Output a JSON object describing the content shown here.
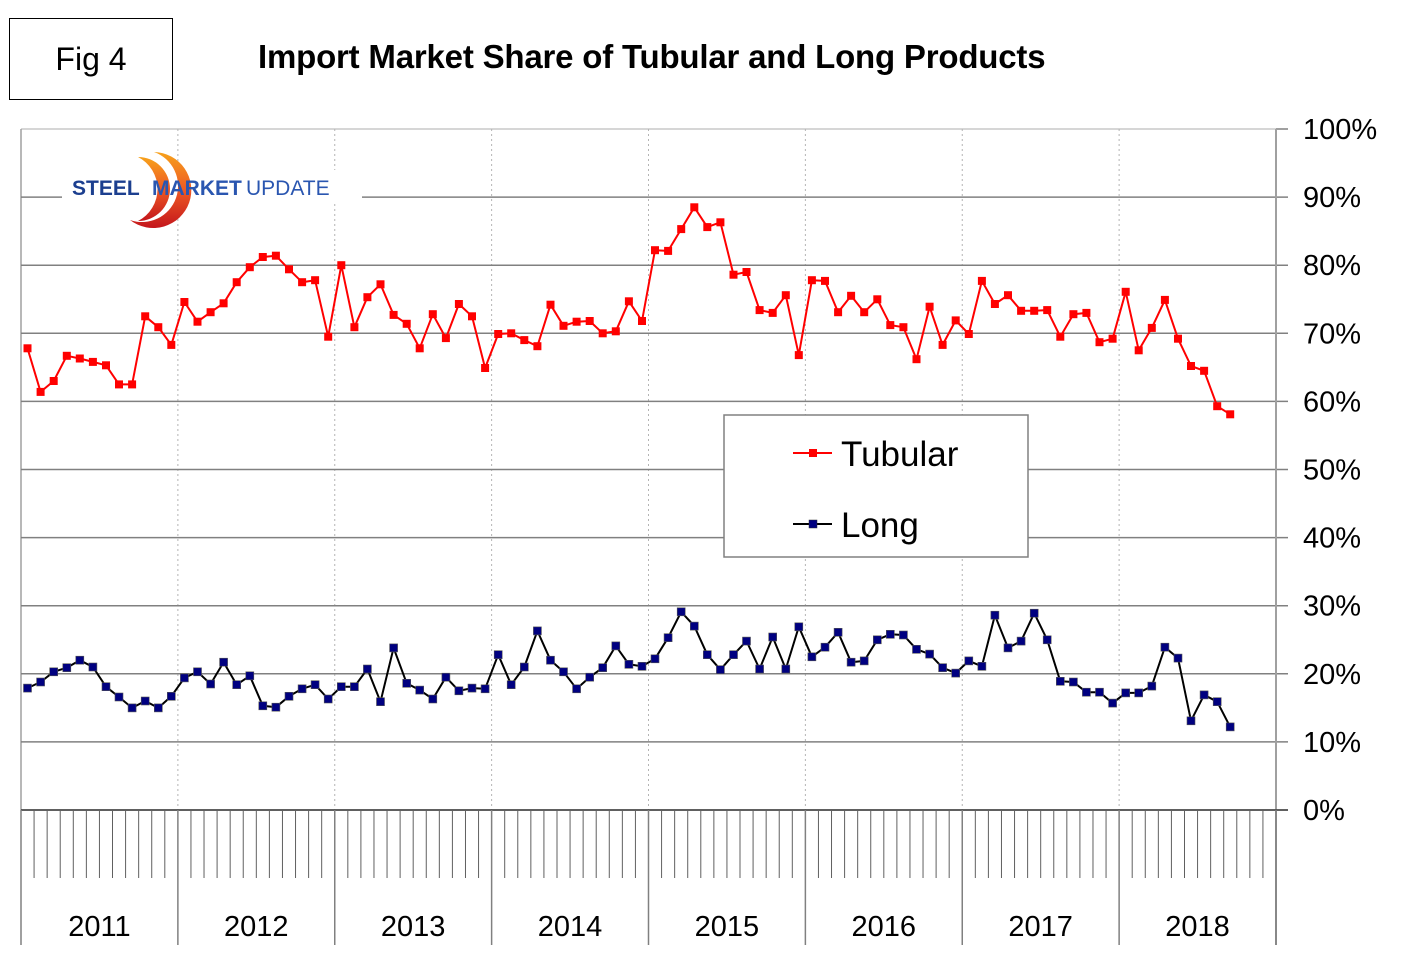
{
  "figure_label": "Fig 4",
  "logo": {
    "word1": "STEEL",
    "word2": "MARKET",
    "word3": "UPDATE",
    "arc_color_top": "#f7a21b",
    "arc_color_bottom": "#c4161c",
    "text_color": "#1c3f8f"
  },
  "chart_data": {
    "type": "line",
    "title": "Import Market Share of Tubular and Long Products",
    "xlabel": "",
    "ylabel": "",
    "y_axis_position": "right",
    "ylim": [
      0,
      100
    ],
    "y_ticks": [
      0,
      10,
      20,
      30,
      40,
      50,
      60,
      70,
      80,
      90,
      100
    ],
    "y_tick_labels": [
      "0%",
      "10%",
      "20%",
      "30%",
      "40%",
      "50%",
      "60%",
      "70%",
      "80%",
      "90%",
      "100%"
    ],
    "x_unit": "month",
    "x_start": "2011-01",
    "x_months_total": 96,
    "x_year_labels": [
      "2011",
      "2012",
      "2013",
      "2014",
      "2015",
      "2016",
      "2017",
      "2018"
    ],
    "grid": {
      "horizontal": "solid",
      "vertical": "dotted-at-year-boundaries"
    },
    "legend": {
      "placement": "center-right",
      "entries": [
        "Tubular",
        "Long"
      ]
    },
    "series": [
      {
        "name": "Tubular",
        "line_color": "#ff0000",
        "marker_color": "#ff0000",
        "marker": "square",
        "values": [
          67.8,
          61.4,
          63.0,
          66.7,
          66.3,
          65.8,
          65.3,
          62.5,
          62.5,
          72.5,
          70.9,
          68.3,
          74.6,
          71.7,
          73.1,
          74.4,
          77.5,
          79.7,
          81.2,
          81.4,
          79.4,
          77.5,
          77.8,
          69.5,
          80.0,
          70.9,
          75.3,
          77.2,
          72.7,
          71.4,
          67.8,
          72.8,
          69.3,
          74.3,
          72.5,
          64.9,
          69.9,
          70.0,
          69.0,
          68.1,
          74.2,
          71.1,
          71.7,
          71.8,
          70.0,
          70.3,
          74.7,
          71.8,
          82.2,
          82.1,
          85.3,
          88.5,
          85.6,
          86.3,
          78.6,
          79.0,
          73.4,
          73.0,
          75.6,
          66.8,
          77.8,
          77.7,
          73.1,
          75.5,
          73.1,
          75.0,
          71.2,
          70.9,
          66.2,
          73.9,
          68.3,
          71.9,
          69.9,
          77.7,
          74.3,
          75.6,
          73.3,
          73.3,
          73.4,
          69.5,
          72.8,
          73.0,
          68.7,
          69.2,
          76.1,
          67.5,
          70.8,
          74.9,
          69.2,
          65.2,
          64.5,
          59.3,
          58.1
        ]
      },
      {
        "name": "Long",
        "line_color": "#000000",
        "marker_color": "#000080",
        "marker": "square",
        "values": [
          17.9,
          18.8,
          20.3,
          20.9,
          22.0,
          21.0,
          18.1,
          16.6,
          15.0,
          16.0,
          15.0,
          16.7,
          19.4,
          20.3,
          18.5,
          21.7,
          18.4,
          19.7,
          15.3,
          15.1,
          16.7,
          17.8,
          18.4,
          16.3,
          18.1,
          18.1,
          20.7,
          15.9,
          23.8,
          18.6,
          17.6,
          16.3,
          19.5,
          17.5,
          17.9,
          17.8,
          22.8,
          18.4,
          21.0,
          26.3,
          22.0,
          20.3,
          17.8,
          19.5,
          20.9,
          24.1,
          21.4,
          21.1,
          22.2,
          25.3,
          29.1,
          27.0,
          22.8,
          20.6,
          22.8,
          24.8,
          20.7,
          25.4,
          20.7,
          26.9,
          22.5,
          23.9,
          26.1,
          21.7,
          21.9,
          25.0,
          25.8,
          25.7,
          23.6,
          22.9,
          20.9,
          20.1,
          21.9,
          21.1,
          28.6,
          23.8,
          24.8,
          28.9,
          25.0,
          18.9,
          18.8,
          17.3,
          17.3,
          15.7,
          17.2,
          17.2,
          18.2,
          23.9,
          22.3,
          13.1,
          16.9,
          15.9,
          12.2
        ]
      }
    ]
  }
}
